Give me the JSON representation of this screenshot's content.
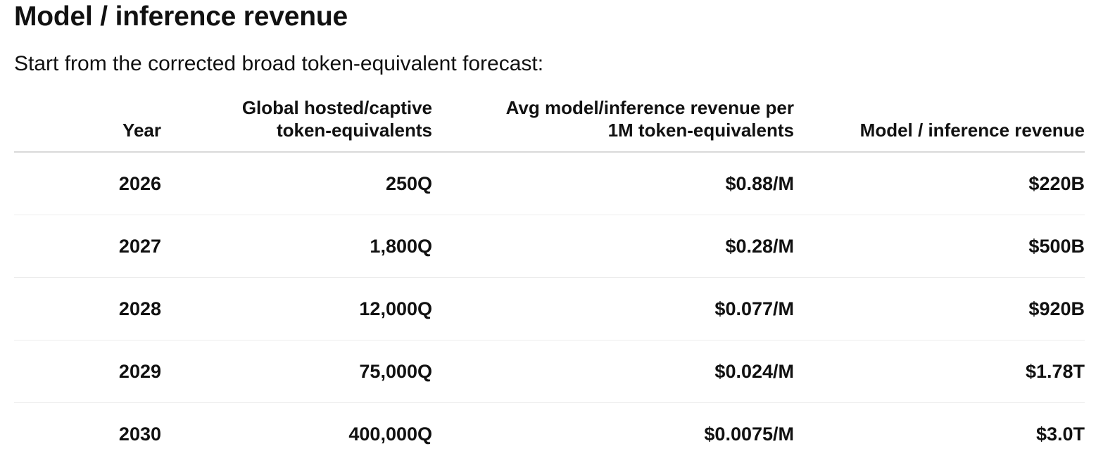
{
  "heading": "Model / inference revenue",
  "intro": "Start from the corrected broad token-equivalent forecast:",
  "table": {
    "headers": [
      {
        "lines": [
          "Year"
        ]
      },
      {
        "lines": [
          "Global hosted/captive",
          "token-equivalents"
        ]
      },
      {
        "lines": [
          "Avg model/inference revenue per",
          "1M token-equivalents"
        ]
      },
      {
        "lines": [
          "Model / inference revenue"
        ]
      }
    ],
    "rows": [
      [
        "2026",
        "250Q",
        "$0.88/M",
        "$220B"
      ],
      [
        "2027",
        "1,800Q",
        "$0.28/M",
        "$500B"
      ],
      [
        "2028",
        "12,000Q",
        "$0.077/M",
        "$920B"
      ],
      [
        "2029",
        "75,000Q",
        "$0.024/M",
        "$1.78T"
      ],
      [
        "2030",
        "400,000Q",
        "$0.0075/M",
        "$3.0T"
      ]
    ]
  }
}
